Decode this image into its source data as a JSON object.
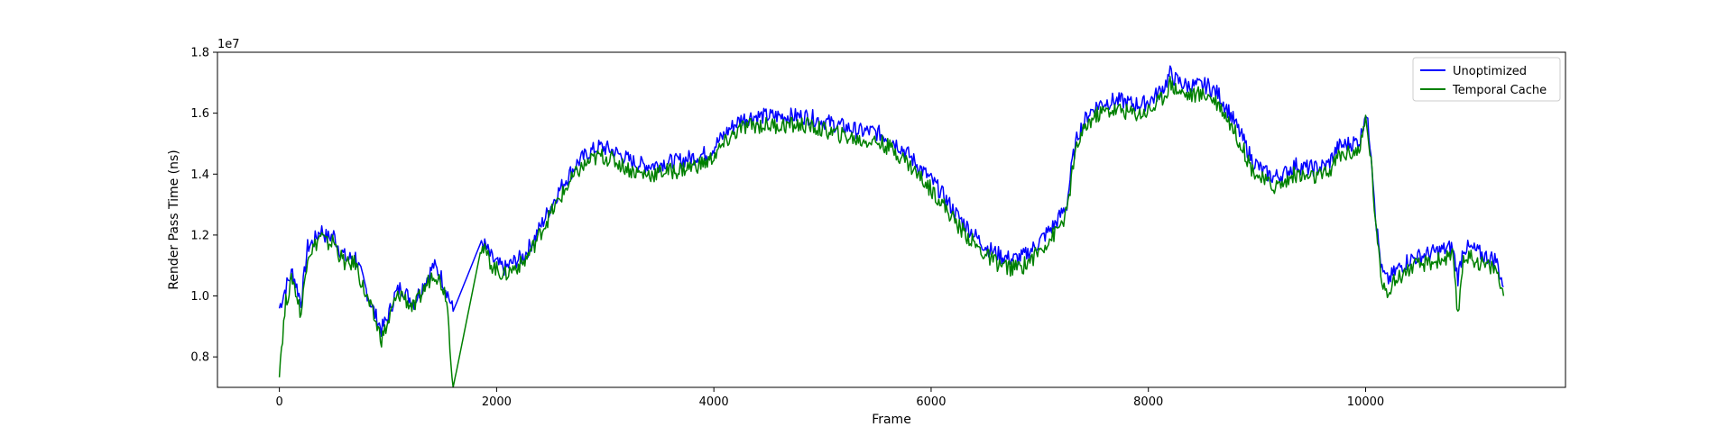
{
  "chart_data": {
    "type": "line",
    "title": "",
    "xlabel": "Frame",
    "ylabel": "Render Pass Time (ns)",
    "y_offset_label": "1e7",
    "xlim": [
      -570,
      11840
    ],
    "ylim": [
      7.0,
      18.0
    ],
    "y_scale_note": "values in units of 1e7 ns",
    "x_ticks": [
      0,
      2000,
      4000,
      6000,
      8000,
      10000
    ],
    "x_tick_labels": [
      "0",
      "2000",
      "4000",
      "6000",
      "8000",
      "10000"
    ],
    "y_ticks": [
      8.0,
      10.0,
      12.0,
      14.0,
      16.0,
      18.0
    ],
    "y_tick_labels": [
      "0.8",
      "1.0",
      "1.2",
      "1.4",
      "1.6",
      "1.8"
    ],
    "grid": false,
    "legend_position": "top-right",
    "series": [
      {
        "name": "Unoptimized",
        "color": "#0000ff",
        "x": [
          0,
          60,
          120,
          200,
          260,
          320,
          380,
          440,
          500,
          560,
          620,
          700,
          760,
          820,
          880,
          940,
          1000,
          1060,
          1120,
          1180,
          1240,
          1300,
          1360,
          1420,
          1480,
          1540,
          1600,
          1860,
          1900,
          1960,
          2020,
          2080,
          2150,
          2250,
          2350,
          2450,
          2550,
          2650,
          2750,
          2850,
          2950,
          3050,
          3150,
          3250,
          3350,
          3450,
          3550,
          3650,
          3750,
          3850,
          3950,
          4050,
          4150,
          4250,
          4350,
          4450,
          4550,
          4650,
          4750,
          4850,
          4950,
          5050,
          5150,
          5250,
          5350,
          5450,
          5550,
          5650,
          5750,
          5850,
          5950,
          6050,
          6150,
          6250,
          6350,
          6450,
          6550,
          6650,
          6750,
          6850,
          6950,
          7050,
          7150,
          7250,
          7300,
          7350,
          7450,
          7550,
          7650,
          7750,
          7850,
          7950,
          8050,
          8150,
          8200,
          8250,
          8350,
          8450,
          8550,
          8650,
          8750,
          8850,
          8950,
          9050,
          9150,
          9250,
          9350,
          9450,
          9550,
          9650,
          9750,
          9850,
          9950,
          10000,
          10050,
          10100,
          10150,
          10200,
          10300,
          10400,
          10500,
          10600,
          10700,
          10800,
          10850,
          10900,
          11000,
          11100,
          11200,
          11270
        ],
        "y": [
          9.6,
          10.3,
          10.8,
          9.8,
          11.6,
          11.8,
          12.2,
          11.9,
          12.0,
          11.5,
          11.2,
          11.3,
          10.6,
          10.0,
          9.4,
          8.9,
          9.3,
          10.0,
          10.3,
          10.0,
          9.8,
          10.2,
          10.6,
          11.0,
          10.7,
          10.2,
          9.5,
          11.8,
          11.6,
          11.2,
          11.0,
          10.9,
          11.1,
          11.3,
          11.9,
          12.6,
          13.3,
          13.9,
          14.4,
          14.7,
          14.9,
          14.8,
          14.6,
          14.4,
          14.3,
          14.3,
          14.4,
          14.4,
          14.5,
          14.6,
          14.7,
          15.1,
          15.5,
          15.8,
          15.9,
          15.9,
          15.9,
          15.9,
          15.9,
          15.9,
          15.8,
          15.7,
          15.6,
          15.5,
          15.4,
          15.4,
          15.3,
          15.1,
          14.8,
          14.4,
          14.0,
          13.6,
          13.1,
          12.6,
          12.2,
          11.8,
          11.5,
          11.3,
          11.2,
          11.3,
          11.6,
          12.0,
          12.4,
          13.0,
          14.4,
          15.3,
          16.0,
          16.3,
          16.4,
          16.4,
          16.3,
          16.3,
          16.5,
          16.9,
          17.3,
          17.1,
          16.9,
          16.9,
          16.9,
          16.6,
          16.0,
          15.3,
          14.5,
          14.1,
          13.9,
          14.0,
          14.3,
          14.2,
          14.2,
          14.3,
          14.9,
          15.0,
          15.1,
          16.1,
          14.8,
          12.3,
          10.8,
          10.5,
          10.9,
          11.2,
          11.3,
          11.4,
          11.5,
          11.6,
          10.6,
          11.6,
          11.5,
          11.3,
          11.2,
          10.3
        ]
      },
      {
        "name": "Temporal Cache",
        "color": "#008000",
        "x": [
          0,
          60,
          120,
          200,
          260,
          320,
          380,
          440,
          500,
          560,
          620,
          700,
          760,
          820,
          880,
          940,
          1000,
          1060,
          1120,
          1180,
          1240,
          1300,
          1360,
          1420,
          1480,
          1540,
          1600,
          1860,
          1900,
          1960,
          2020,
          2080,
          2150,
          2250,
          2350,
          2450,
          2550,
          2650,
          2750,
          2850,
          2950,
          3050,
          3150,
          3250,
          3350,
          3450,
          3550,
          3650,
          3750,
          3850,
          3950,
          4050,
          4150,
          4250,
          4350,
          4450,
          4550,
          4650,
          4750,
          4850,
          4950,
          5050,
          5150,
          5250,
          5350,
          5450,
          5550,
          5650,
          5750,
          5850,
          5950,
          6050,
          6150,
          6250,
          6350,
          6450,
          6550,
          6650,
          6750,
          6850,
          6950,
          7050,
          7150,
          7250,
          7300,
          7350,
          7450,
          7550,
          7650,
          7750,
          7850,
          7950,
          8050,
          8150,
          8200,
          8250,
          8350,
          8450,
          8550,
          8650,
          8750,
          8850,
          8950,
          9050,
          9150,
          9250,
          9350,
          9450,
          9550,
          9650,
          9750,
          9850,
          9950,
          10000,
          10050,
          10100,
          10150,
          10200,
          10300,
          10400,
          10500,
          10600,
          10700,
          10800,
          10850,
          10900,
          11000,
          11100,
          11200,
          11270
        ],
        "y": [
          7.6,
          9.8,
          10.6,
          9.4,
          11.4,
          11.6,
          12.0,
          11.7,
          11.8,
          11.3,
          11.0,
          11.1,
          10.4,
          9.8,
          9.2,
          8.6,
          9.1,
          9.8,
          10.1,
          9.8,
          9.6,
          10.0,
          10.4,
          10.8,
          10.5,
          10.0,
          7.0,
          11.6,
          11.4,
          11.0,
          10.8,
          10.7,
          10.9,
          11.1,
          11.7,
          12.4,
          13.0,
          13.6,
          14.1,
          14.4,
          14.6,
          14.5,
          14.3,
          14.1,
          14.0,
          14.0,
          14.1,
          14.1,
          14.2,
          14.3,
          14.4,
          14.8,
          15.2,
          15.5,
          15.6,
          15.6,
          15.6,
          15.6,
          15.6,
          15.6,
          15.5,
          15.4,
          15.3,
          15.2,
          15.1,
          15.1,
          15.0,
          14.8,
          14.5,
          14.1,
          13.7,
          13.3,
          12.8,
          12.3,
          11.9,
          11.5,
          11.2,
          11.0,
          10.9,
          11.0,
          11.3,
          11.7,
          12.1,
          12.7,
          14.1,
          15.0,
          15.7,
          16.0,
          16.1,
          16.1,
          16.0,
          16.0,
          16.2,
          16.6,
          17.0,
          16.8,
          16.6,
          16.6,
          16.6,
          16.3,
          15.7,
          15.0,
          14.2,
          13.8,
          13.6,
          13.7,
          14.0,
          13.9,
          13.9,
          14.0,
          14.6,
          14.7,
          14.8,
          15.8,
          14.5,
          12.0,
          10.5,
          10.2,
          10.6,
          10.9,
          11.0,
          11.1,
          11.2,
          11.3,
          9.3,
          11.3,
          11.2,
          11.0,
          10.9,
          10.0
        ]
      }
    ]
  }
}
